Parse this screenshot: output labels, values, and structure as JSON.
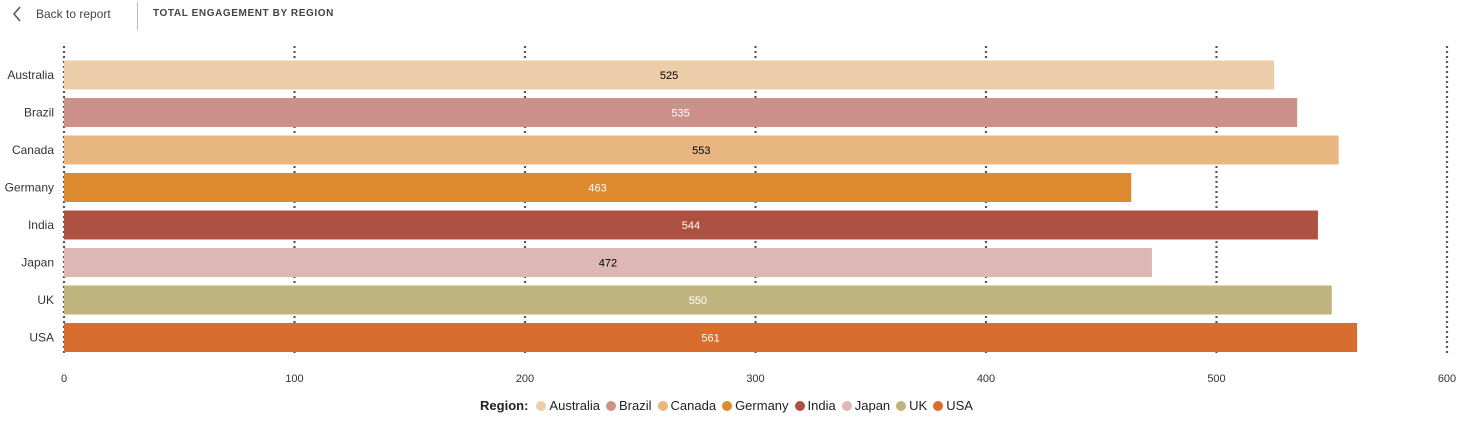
{
  "header": {
    "back_label": "Back to report",
    "title": "TOTAL ENGAGEMENT BY REGION",
    "back_icon": "chevron-left-icon"
  },
  "legend": {
    "title": "Region:"
  },
  "chart_data": {
    "type": "bar",
    "orientation": "horizontal",
    "categories": [
      "Australia",
      "Brazil",
      "Canada",
      "Germany",
      "India",
      "Japan",
      "UK",
      "USA"
    ],
    "values": [
      525,
      535,
      553,
      463,
      544,
      472,
      550,
      561
    ],
    "colors": [
      "#EBCDA9",
      "#CC928A",
      "#E8B681",
      "#DD8A2E",
      "#AE5042",
      "#DDB7B3",
      "#BFB37E",
      "#D96C2F"
    ],
    "label_colors": [
      "#000000",
      "#ffffff",
      "#000000",
      "#ffffff",
      "#ffffff",
      "#000000",
      "#ffffff",
      "#ffffff"
    ],
    "xlim": [
      0,
      600
    ],
    "xticks": [
      0,
      100,
      200,
      300,
      400,
      500,
      600
    ],
    "grid": "vertical-dotted",
    "legend_position": "bottom-center",
    "title": "TOTAL ENGAGEMENT BY REGION",
    "xlabel": "",
    "ylabel": ""
  }
}
